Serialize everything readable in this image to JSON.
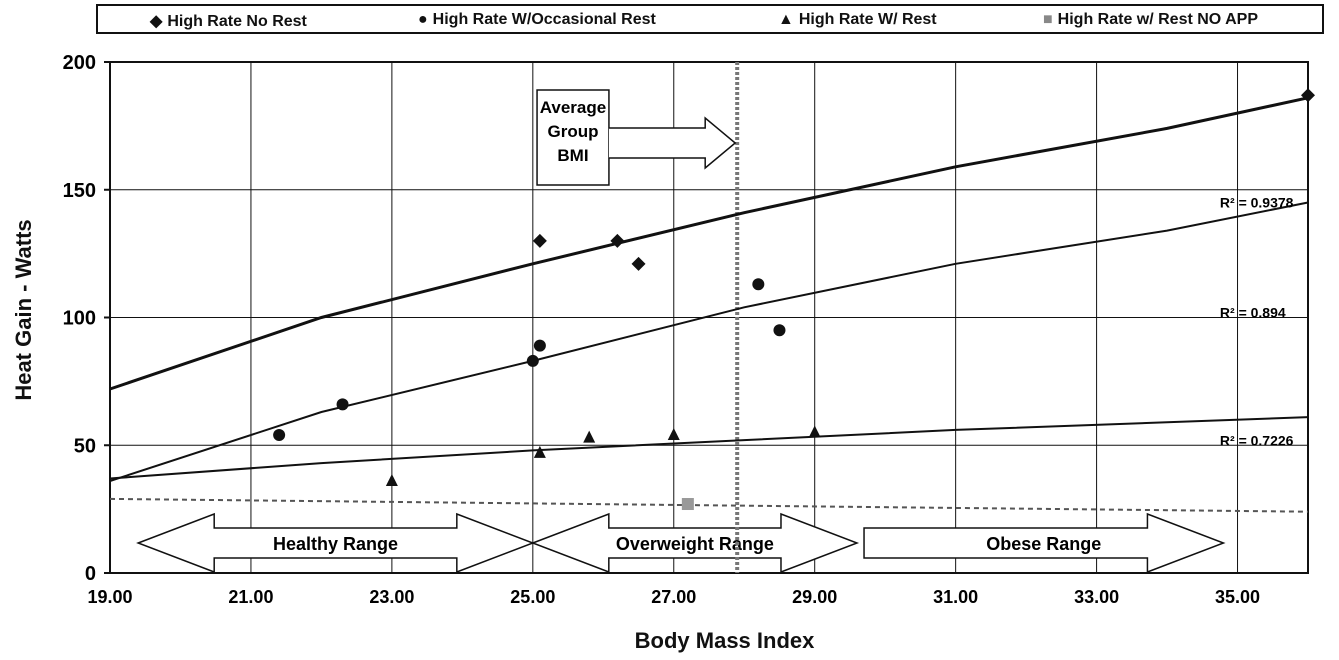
{
  "chart_data": {
    "type": "scatter",
    "xlabel": "Body Mass Index",
    "ylabel": "Heat Gain  - Watts",
    "xlim": [
      19,
      36
    ],
    "ylim": [
      0,
      200
    ],
    "x_ticks": [
      "19.00",
      "21.00",
      "23.00",
      "25.00",
      "27.00",
      "29.00",
      "31.00",
      "33.00",
      "35.00"
    ],
    "y_ticks": [
      "0",
      "50",
      "100",
      "150",
      "200"
    ],
    "grid": true,
    "legend_position": "top",
    "series": [
      {
        "name": "High Rate No Rest",
        "marker": "diamond",
        "points": [
          [
            25.1,
            130
          ],
          [
            26.2,
            130
          ],
          [
            26.5,
            121
          ],
          [
            36.0,
            187
          ]
        ],
        "trend_r2": "R² = 0.9378",
        "trend": [
          [
            19,
            72
          ],
          [
            22,
            100
          ],
          [
            25,
            121
          ],
          [
            28,
            141
          ],
          [
            31,
            159
          ],
          [
            34,
            174
          ],
          [
            36,
            186
          ]
        ]
      },
      {
        "name": "High Rate W/Occasional Rest",
        "marker": "circle",
        "points": [
          [
            21.4,
            54
          ],
          [
            22.3,
            66
          ],
          [
            25.0,
            83
          ],
          [
            25.1,
            89
          ],
          [
            28.2,
            113
          ],
          [
            28.5,
            95
          ]
        ],
        "trend_r2": "R² = 0.894",
        "trend": [
          [
            19,
            36
          ],
          [
            22,
            63
          ],
          [
            25,
            83
          ],
          [
            28,
            104
          ],
          [
            31,
            121
          ],
          [
            34,
            134
          ],
          [
            36,
            145
          ]
        ]
      },
      {
        "name": "High Rate W/ Rest",
        "marker": "triangle",
        "points": [
          [
            23.0,
            36
          ],
          [
            25.1,
            47
          ],
          [
            25.8,
            53
          ],
          [
            27.0,
            54
          ],
          [
            29.0,
            55
          ]
        ],
        "trend_r2": "R² = 0.7226",
        "trend": [
          [
            19,
            37
          ],
          [
            22,
            43
          ],
          [
            25,
            48
          ],
          [
            28,
            52
          ],
          [
            31,
            56
          ],
          [
            34,
            59
          ],
          [
            36,
            61
          ]
        ]
      },
      {
        "name": "High Rate w/ Rest NO APP",
        "marker": "square",
        "points": [
          [
            27.2,
            27
          ]
        ],
        "trend": [
          [
            19,
            29
          ],
          [
            36,
            24
          ]
        ]
      }
    ],
    "annotations": [
      {
        "text": "Average Group BMI",
        "x": 27.9
      },
      {
        "text": "Healthy Range",
        "from": 19.4,
        "to": 25.0
      },
      {
        "text": "Overweight Range",
        "from": 25.0,
        "to": 29.6
      },
      {
        "text": "Obese Range",
        "from": 29.7,
        "to": 34.8
      }
    ]
  },
  "labels": {
    "avg_group_bmi": [
      "Average",
      "Group",
      "BMI"
    ],
    "healthy": "Healthy Range",
    "overweight": "Overweight Range",
    "obese": "Obese Range"
  }
}
